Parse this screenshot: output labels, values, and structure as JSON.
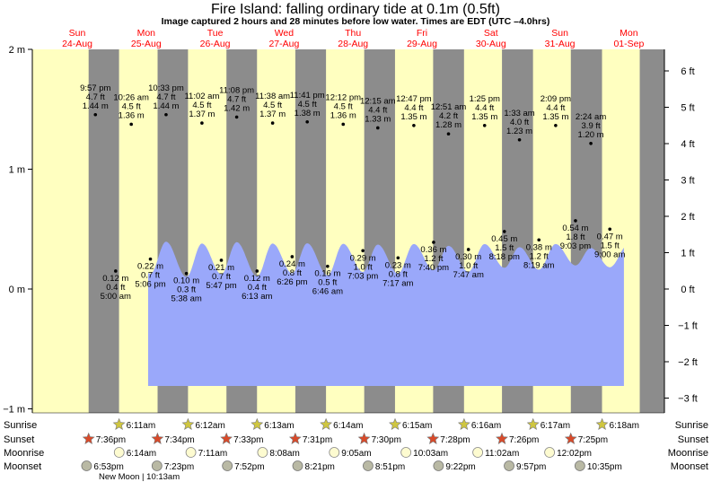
{
  "title": "Fire Island: falling  ordinary tide at 0.1m (0.5ft)",
  "subtitle": "Image captured 2 hours and 28 minutes before low water. Times are EDT (UTC –4.0hrs)",
  "colors": {
    "night": "#8c8c8c",
    "day": "#ffffc0",
    "water": "#9aa8fa",
    "day_label": "#ff0000"
  },
  "days": [
    {
      "day": "Sun",
      "date": "24-Aug"
    },
    {
      "day": "Mon",
      "date": "25-Aug"
    },
    {
      "day": "Tue",
      "date": "26-Aug"
    },
    {
      "day": "Wed",
      "date": "27-Aug"
    },
    {
      "day": "Thu",
      "date": "28-Aug"
    },
    {
      "day": "Fri",
      "date": "29-Aug"
    },
    {
      "day": "Sat",
      "date": "30-Aug"
    },
    {
      "day": "Sun",
      "date": "31-Aug"
    },
    {
      "day": "Mon",
      "date": "01-Sep"
    }
  ],
  "axis_left_labels": [
    "2 m",
    "1 m",
    "0 m",
    "−1 m"
  ],
  "axis_right_labels": [
    "6 ft",
    "5 ft",
    "4 ft",
    "3 ft",
    "2 ft",
    "1 ft",
    "0 ft",
    "−1 ft",
    "−2 ft",
    "−3 ft"
  ],
  "chart_data": {
    "type": "area",
    "title": "Fire Island: falling  ordinary tide at 0.1m (0.5ft)",
    "x_unit": "days from Sun 24-Aug 00:00 (EDT)",
    "ylim_m": [
      -1,
      2
    ],
    "y_right_unit": "ft",
    "grid": false,
    "extremes": [
      {
        "type": "high",
        "day": 0,
        "time": "9:57 pm",
        "ft": "4.7 ft",
        "m": 1.44
      },
      {
        "type": "low",
        "day": 1,
        "time": "5:00 am",
        "ft": "0.4 ft",
        "m": 0.12
      },
      {
        "type": "high",
        "day": 1,
        "time": "10:26 am",
        "ft": "4.5 ft",
        "m": 1.36
      },
      {
        "type": "low",
        "day": 1,
        "time": "5:06 pm",
        "ft": "0.7 ft",
        "m": 0.22
      },
      {
        "type": "high",
        "day": 1,
        "time": "10:33 pm",
        "ft": "4.7 ft",
        "m": 1.44
      },
      {
        "type": "low",
        "day": 2,
        "time": "5:38 am",
        "ft": "0.3 ft",
        "m": 0.1
      },
      {
        "type": "high",
        "day": 2,
        "time": "11:02 am",
        "ft": "4.5 ft",
        "m": 1.37
      },
      {
        "type": "low",
        "day": 2,
        "time": "5:47 pm",
        "ft": "0.7 ft",
        "m": 0.21
      },
      {
        "type": "high",
        "day": 2,
        "time": "11:08 pm",
        "ft": "4.7 ft",
        "m": 1.42
      },
      {
        "type": "low",
        "day": 3,
        "time": "6:13 am",
        "ft": "0.4 ft",
        "m": 0.12
      },
      {
        "type": "high",
        "day": 3,
        "time": "11:38 am",
        "ft": "4.5 ft",
        "m": 1.37
      },
      {
        "type": "low",
        "day": 3,
        "time": "6:26 pm",
        "ft": "0.8 ft",
        "m": 0.24
      },
      {
        "type": "high",
        "day": 3,
        "time": "11:41 pm",
        "ft": "4.5 ft",
        "m": 1.38
      },
      {
        "type": "low",
        "day": 4,
        "time": "6:46 am",
        "ft": "0.5 ft",
        "m": 0.16
      },
      {
        "type": "high",
        "day": 4,
        "time": "12:12 pm",
        "ft": "4.5 ft",
        "m": 1.36
      },
      {
        "type": "low",
        "day": 4,
        "time": "7:03 pm",
        "ft": "1.0 ft",
        "m": 0.29
      },
      {
        "type": "high",
        "day": 5,
        "time": "12:15 am",
        "ft": "4.4 ft",
        "m": 1.33
      },
      {
        "type": "low",
        "day": 5,
        "time": "7:17 am",
        "ft": "0.8 ft",
        "m": 0.23
      },
      {
        "type": "high",
        "day": 5,
        "time": "12:47 pm",
        "ft": "4.4 ft",
        "m": 1.35
      },
      {
        "type": "low",
        "day": 5,
        "time": "7:40 pm",
        "ft": "1.2 ft",
        "m": 0.36
      },
      {
        "type": "high",
        "day": 6,
        "time": "12:51 am",
        "ft": "4.2 ft",
        "m": 1.28
      },
      {
        "type": "low",
        "day": 6,
        "time": "7:47 am",
        "ft": "1.0 ft",
        "m": 0.3
      },
      {
        "type": "high",
        "day": 6,
        "time": "1:25 pm",
        "ft": "4.4 ft",
        "m": 1.35
      },
      {
        "type": "low",
        "day": 6,
        "time": "8:18 pm",
        "ft": "1.5 ft",
        "m": 0.45
      },
      {
        "type": "high",
        "day": 7,
        "time": "1:33 am",
        "ft": "4.0 ft",
        "m": 1.23
      },
      {
        "type": "low",
        "day": 7,
        "time": "8:19 am",
        "ft": "1.2 ft",
        "m": 0.38
      },
      {
        "type": "high",
        "day": 7,
        "time": "2:09 pm",
        "ft": "4.4 ft",
        "m": 1.35
      },
      {
        "type": "low",
        "day": 7,
        "time": "9:03 pm",
        "ft": "1.8 ft",
        "m": 0.54
      },
      {
        "type": "high",
        "day": 8,
        "time": "2:24 am",
        "ft": "3.9 ft",
        "m": 1.2
      },
      {
        "type": "low",
        "day": 8,
        "time": "9:00 am",
        "ft": "1.5 ft",
        "m": 0.47
      }
    ],
    "current": {
      "level_m": 0.1,
      "level_ft": 0.5,
      "state": "falling"
    }
  },
  "bottom_rows": {
    "labels": [
      "Sunrise",
      "Sunset",
      "Moonrise",
      "Moonset"
    ],
    "sunrise": [
      "6:11am",
      "6:12am",
      "6:13am",
      "6:14am",
      "6:15am",
      "6:16am",
      "6:17am",
      "6:18am"
    ],
    "sunset": [
      "7:36pm",
      "7:34pm",
      "7:33pm",
      "7:31pm",
      "7:30pm",
      "7:28pm",
      "7:26pm",
      "7:25pm"
    ],
    "moonrise": [
      "6:14am",
      "7:11am",
      "8:08am",
      "9:05am",
      "10:03am",
      "11:02am",
      "12:02pm"
    ],
    "moonset": [
      "6:53pm",
      "7:23pm",
      "7:52pm",
      "8:21pm",
      "8:51pm",
      "9:22pm",
      "9:57pm",
      "10:35pm"
    ],
    "new_moon": "New Moon | 10:13am"
  }
}
